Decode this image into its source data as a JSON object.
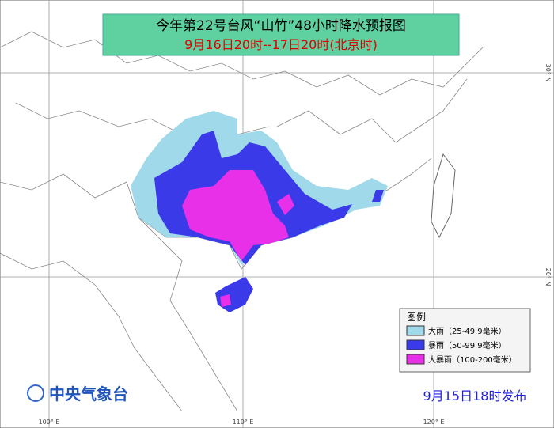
{
  "header": {
    "title": "今年第22号台风“山竹”48小时降水预报图",
    "subtitle": "9月16日20时--17日20时(北京时)"
  },
  "legend": {
    "title": "图例",
    "items": [
      {
        "label": "大雨（25-49.9毫米）",
        "color": "#9fd9ea"
      },
      {
        "label": "暴雨（50-99.9毫米）",
        "color": "#3a3ae8"
      },
      {
        "label": "大暴雨（100-200毫米）",
        "color": "#e830e8"
      }
    ]
  },
  "footer": {
    "agency": "中央气象台",
    "issued": "9月15日18时发布"
  },
  "grid": {
    "lon_labels": [
      "100° E",
      "110° E",
      "120° E"
    ],
    "lat_labels": [
      "30° N",
      "20° N"
    ]
  }
}
